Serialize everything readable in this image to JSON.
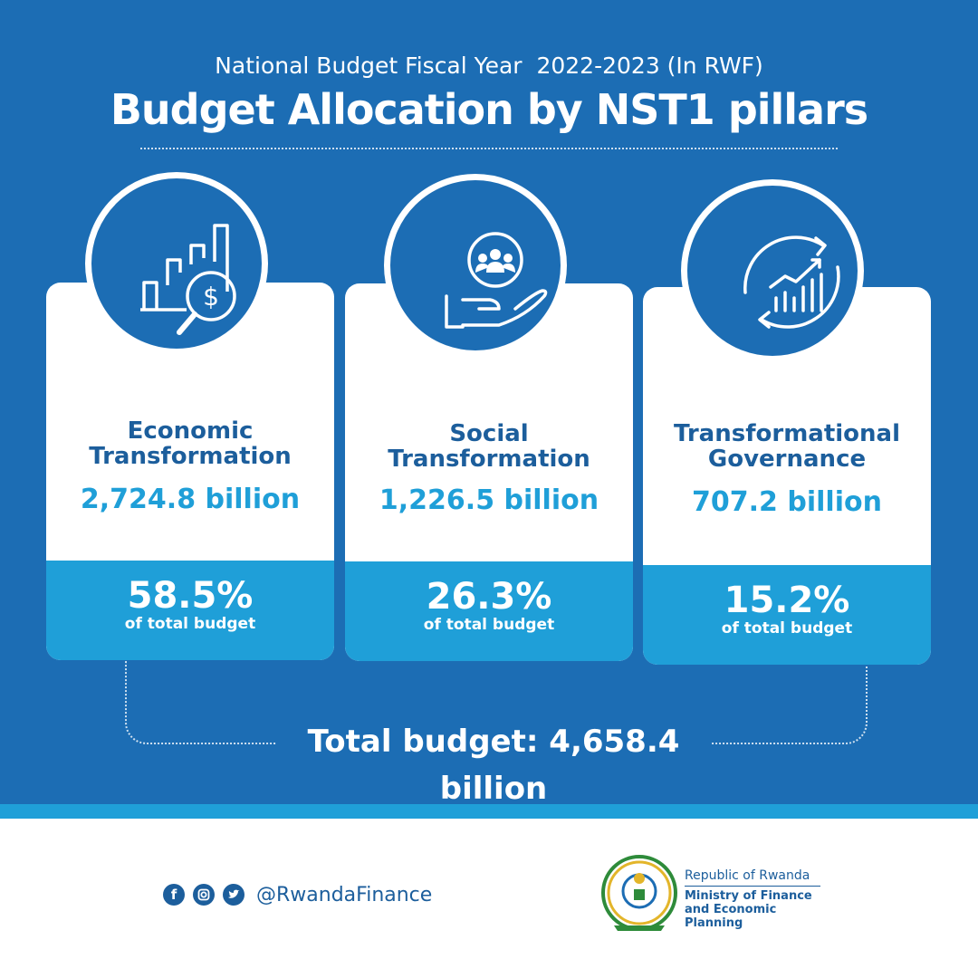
{
  "header": {
    "subtitle": "National Budget Fiscal Year  2022-2023 (In RWF)",
    "title": "Budget Allocation by NST1 pillars"
  },
  "pillars": [
    {
      "name": "Economic Transformation",
      "amount": "2,724.8 billion",
      "percent": "58.5%",
      "percent_label": "of total budget",
      "icon": "dollar-growth-chart-icon"
    },
    {
      "name": "Social Transformation",
      "amount": "1,226.5 billion",
      "percent": "26.3%",
      "percent_label": "of total budget",
      "icon": "helping-hand-people-icon"
    },
    {
      "name": "Transformational Governance",
      "amount": "707.2 billion",
      "percent": "15.2%",
      "percent_label": "of total budget",
      "icon": "cycle-bar-chart-icon"
    }
  ],
  "total": "Total budget: 4,658.4 billion",
  "footer": {
    "social_icons": [
      "facebook-icon",
      "instagram-icon",
      "twitter-icon"
    ],
    "handle": "@RwandaFinance",
    "org_line1": "Republic of Rwanda",
    "org_line2": "Ministry of Finance and Economic Planning"
  },
  "colors": {
    "primary": "#1c6db4",
    "accent": "#1f9fd8",
    "dark_text": "#1c5e9c",
    "white": "#ffffff"
  }
}
